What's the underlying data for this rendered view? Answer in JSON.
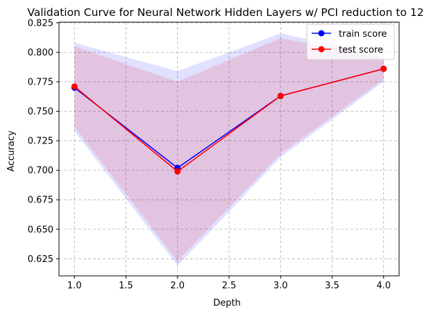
{
  "chart_data": {
    "type": "line",
    "title": "Validation Curve for Neural Network Hidden Layers w/ PCI reduction to 12",
    "xlabel": "Depth",
    "ylabel": "Accuracy",
    "xlim": [
      0.85,
      4.15
    ],
    "ylim": [
      0.6105,
      0.8255
    ],
    "xticks": [
      1.0,
      1.5,
      2.0,
      2.5,
      3.0,
      3.5,
      4.0
    ],
    "xtick_labels": [
      "1.0",
      "1.5",
      "2.0",
      "2.5",
      "3.0",
      "3.5",
      "4.0"
    ],
    "yticks": [
      0.625,
      0.65,
      0.675,
      0.7,
      0.725,
      0.75,
      0.775,
      0.8,
      0.825
    ],
    "ytick_labels": [
      "0.625",
      "0.650",
      "0.675",
      "0.700",
      "0.725",
      "0.750",
      "0.775",
      "0.800",
      "0.825"
    ],
    "grid": true,
    "legend_position": "top-right",
    "x": [
      1,
      2,
      3,
      4
    ],
    "series": [
      {
        "name": "train score",
        "color": "#0000ff",
        "band_color": "#0000ff",
        "values": [
          0.77,
          0.702,
          0.763,
          0.786
        ],
        "band_lower": [
          0.733,
          0.619,
          0.711,
          0.775
        ],
        "band_upper": [
          0.808,
          0.784,
          0.816,
          0.797
        ]
      },
      {
        "name": "test score",
        "color": "#ff0000",
        "band_color": "#ff0000",
        "values": [
          0.771,
          0.699,
          0.763,
          0.786
        ],
        "band_lower": [
          0.737,
          0.623,
          0.714,
          0.777
        ],
        "band_upper": [
          0.805,
          0.775,
          0.812,
          0.795
        ]
      }
    ]
  }
}
